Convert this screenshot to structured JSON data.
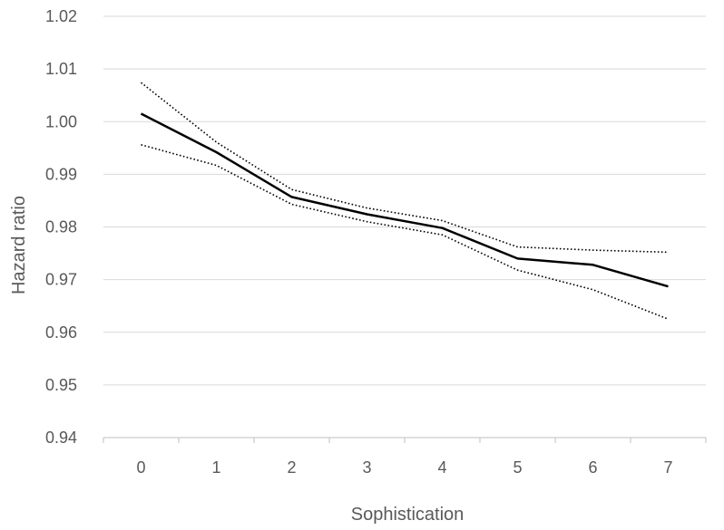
{
  "chart_data": {
    "type": "line",
    "title": "",
    "xlabel": "Sophistication",
    "ylabel": "Hazard ratio",
    "x": [
      0,
      1,
      2,
      3,
      4,
      5,
      6,
      7
    ],
    "x_tick_labels": [
      "0",
      "1",
      "2",
      "3",
      "4",
      "5",
      "6",
      "7"
    ],
    "y_tick_labels": [
      "0.94",
      "0.95",
      "0.96",
      "0.97",
      "0.98",
      "0.99",
      "1.00",
      "1.01",
      "1.02"
    ],
    "ylim": [
      0.94,
      1.02
    ],
    "grid": "horizontal",
    "legend": "none",
    "series": [
      {
        "values": [
          1.0015,
          0.9942,
          0.9857,
          0.9824,
          0.9798,
          0.974,
          0.9728,
          0.9687
        ],
        "style": "solid",
        "color": "#000000"
      },
      {
        "values": [
          1.0074,
          0.9961,
          0.9871,
          0.9836,
          0.9812,
          0.9762,
          0.9756,
          0.9752
        ],
        "style": "dotted",
        "color": "#000000"
      },
      {
        "values": [
          0.9956,
          0.9917,
          0.9843,
          0.981,
          0.9785,
          0.9718,
          0.9681,
          0.9625
        ],
        "style": "dotted",
        "color": "#000000"
      }
    ],
    "colors": {
      "grid": "#d9d9d9",
      "axis": "#bfbfbf",
      "text": "#595959"
    }
  }
}
